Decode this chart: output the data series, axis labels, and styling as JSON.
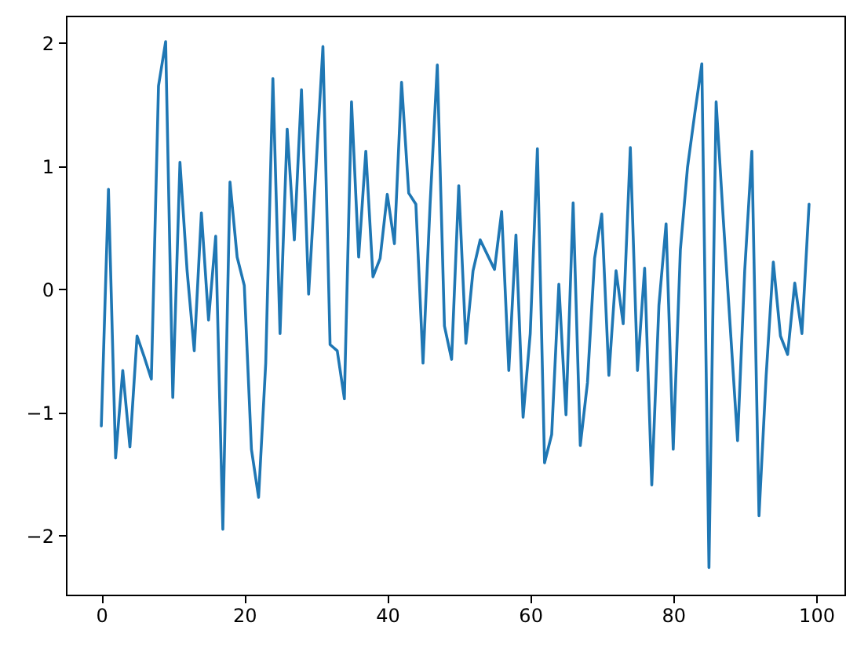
{
  "chart_data": {
    "type": "line",
    "x": [
      0,
      1,
      2,
      3,
      4,
      5,
      6,
      7,
      8,
      9,
      10,
      11,
      12,
      13,
      14,
      15,
      16,
      17,
      18,
      19,
      20,
      21,
      22,
      23,
      24,
      25,
      26,
      27,
      28,
      29,
      30,
      31,
      32,
      33,
      34,
      35,
      36,
      37,
      38,
      39,
      40,
      41,
      42,
      43,
      44,
      45,
      46,
      47,
      48,
      49,
      50,
      51,
      52,
      53,
      54,
      55,
      56,
      57,
      58,
      59,
      60,
      61,
      62,
      63,
      64,
      65,
      66,
      67,
      68,
      69,
      70,
      71,
      72,
      73,
      74,
      75,
      76,
      77,
      78,
      79,
      80,
      81,
      82,
      83,
      84,
      85,
      86,
      87,
      88,
      89,
      90,
      91,
      92,
      93,
      94,
      95,
      96,
      97,
      98,
      99
    ],
    "values": [
      -1.11,
      0.81,
      -1.37,
      -0.66,
      -1.28,
      -0.38,
      -0.55,
      -0.73,
      1.65,
      2.01,
      -0.88,
      1.03,
      0.15,
      -0.5,
      0.62,
      -0.25,
      0.43,
      -1.95,
      0.87,
      0.26,
      0.03,
      -1.3,
      -1.69,
      -0.6,
      1.71,
      -0.36,
      1.3,
      0.4,
      1.62,
      -0.04,
      0.95,
      1.97,
      -0.45,
      -0.5,
      -0.89,
      1.52,
      0.26,
      1.12,
      0.1,
      0.25,
      0.77,
      0.37,
      1.68,
      0.78,
      0.69,
      -0.6,
      0.7,
      1.82,
      -0.3,
      -0.57,
      0.84,
      -0.44,
      0.15,
      0.4,
      0.28,
      0.16,
      0.63,
      -0.66,
      0.44,
      -1.04,
      -0.36,
      1.14,
      -1.41,
      -1.18,
      0.04,
      -1.02,
      0.7,
      -1.27,
      -0.76,
      0.25,
      0.61,
      -0.7,
      0.15,
      -0.28,
      1.15,
      -0.66,
      0.17,
      -1.59,
      -0.13,
      0.53,
      -1.3,
      0.32,
      0.99,
      1.42,
      1.83,
      -2.26,
      1.52,
      0.57,
      -0.33,
      -1.23,
      0.15,
      1.12,
      -1.84,
      -0.7,
      0.22,
      -0.38,
      -0.53,
      0.05,
      -0.36,
      0.69
    ],
    "color": "#1f77b4",
    "xlim": [
      -4.95,
      103.95
    ],
    "ylim": [
      -2.48,
      2.22
    ],
    "xticks": [
      0,
      20,
      40,
      60,
      80,
      100
    ],
    "yticks": [
      -2,
      -1,
      0,
      1,
      2
    ]
  }
}
